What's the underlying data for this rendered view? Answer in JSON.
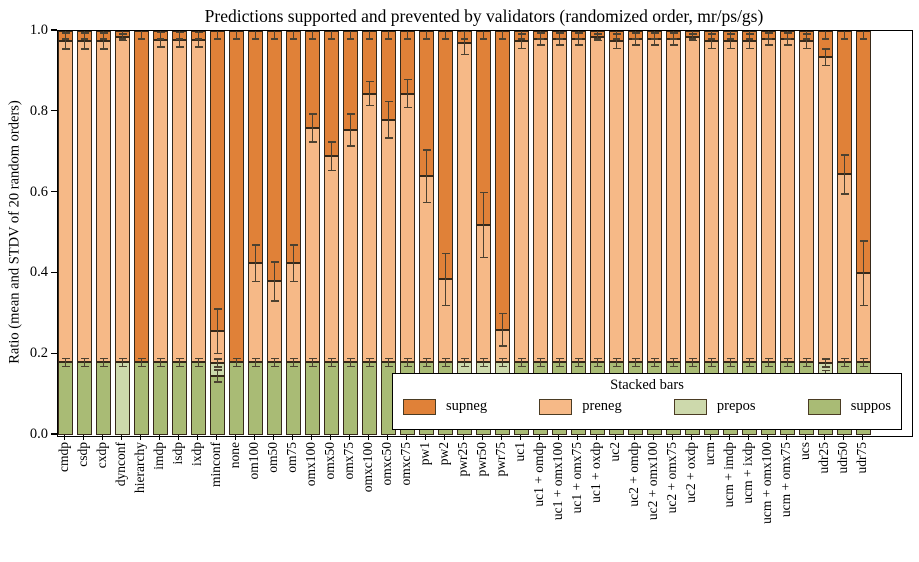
{
  "title": "Predictions supported and prevented by validators (randomized order, mr/ps/gs)",
  "ylabel": "Ratio (mean and STDV of 20 random orders)",
  "legend": {
    "title": "Stacked bars",
    "entries": [
      {
        "name": "supneg",
        "label": "supneg",
        "color": "#e08138"
      },
      {
        "name": "preneg",
        "label": "preneg",
        "color": "#f6b987"
      },
      {
        "name": "prepos",
        "label": "prepos",
        "color": "#cdd9ac"
      },
      {
        "name": "suppos",
        "label": "suppos",
        "color": "#a9bb75"
      }
    ]
  },
  "chart_data": {
    "type": "bar",
    "stacked": true,
    "title": "Predictions supported and prevented by validators (randomized order, mr/ps/gs)",
    "xlabel": "",
    "ylabel": "Ratio (mean and STDV of 20 random orders)",
    "ylim": [
      0.0,
      1.0
    ],
    "yticks": [
      "0.0",
      "0.2",
      "0.4",
      "0.6",
      "0.8",
      "1.0"
    ],
    "grid": false,
    "legend_position": "lower right inside",
    "series_order_bottom_to_top": [
      "suppos",
      "prepos",
      "preneg",
      "supneg"
    ],
    "colors": {
      "supneg": "#e08138",
      "preneg": "#f6b987",
      "prepos": "#cdd9ac",
      "suppos": "#a9bb75",
      "edge": "#36291a",
      "errorbar": "#4c4130"
    },
    "note": "Each bar stacks to 1.0; 'boundary' = top of preneg / bottom of supneg; 'err' = STDV of that boundary; green_top_err applies at suppos+prepos boundary; top_err is the small tick at 1.0.",
    "green_top_err": 0.01,
    "top_err": 0.02,
    "bars": [
      {
        "label": "cmdp",
        "suppos": 0.18,
        "prepos": 0,
        "boundary": 0.975,
        "err": 0.02
      },
      {
        "label": "csdp",
        "suppos": 0.18,
        "prepos": 0,
        "boundary": 0.975,
        "err": 0.02
      },
      {
        "label": "cxdp",
        "suppos": 0.18,
        "prepos": 0,
        "boundary": 0.975,
        "err": 0.02
      },
      {
        "label": "dynconf",
        "suppos": 0,
        "prepos": 0.18,
        "boundary": 0.985,
        "err": 0.008
      },
      {
        "label": "hierarchy",
        "suppos": 0.18,
        "prepos": 0,
        "boundary": 0.18,
        "err": null
      },
      {
        "label": "imdp",
        "suppos": 0.18,
        "prepos": 0,
        "boundary": 0.978,
        "err": 0.018
      },
      {
        "label": "isdp",
        "suppos": 0.18,
        "prepos": 0,
        "boundary": 0.978,
        "err": 0.018
      },
      {
        "label": "ixdp",
        "suppos": 0.18,
        "prepos": 0,
        "boundary": 0.978,
        "err": 0.018
      },
      {
        "label": "minconf",
        "suppos": 0.146,
        "prepos": 0.032,
        "boundary": 0.257,
        "err": 0.055,
        "extra_errs": [
          {
            "v": 0.146,
            "e": 0.015
          }
        ]
      },
      {
        "label": "none",
        "suppos": 0.18,
        "prepos": 0,
        "boundary": 0.18,
        "err": null
      },
      {
        "label": "om100",
        "suppos": 0.18,
        "prepos": 0,
        "boundary": 0.425,
        "err": 0.045
      },
      {
        "label": "om50",
        "suppos": 0.18,
        "prepos": 0,
        "boundary": 0.38,
        "err": 0.048
      },
      {
        "label": "om75",
        "suppos": 0.18,
        "prepos": 0,
        "boundary": 0.425,
        "err": 0.045
      },
      {
        "label": "omx100",
        "suppos": 0.18,
        "prepos": 0,
        "boundary": 0.76,
        "err": 0.035
      },
      {
        "label": "omx50",
        "suppos": 0.18,
        "prepos": 0,
        "boundary": 0.69,
        "err": 0.035
      },
      {
        "label": "omx75",
        "suppos": 0.18,
        "prepos": 0,
        "boundary": 0.755,
        "err": 0.04
      },
      {
        "label": "omxc100",
        "suppos": 0.18,
        "prepos": 0,
        "boundary": 0.845,
        "err": 0.03
      },
      {
        "label": "omxc50",
        "suppos": 0.18,
        "prepos": 0,
        "boundary": 0.78,
        "err": 0.045
      },
      {
        "label": "omxc75",
        "suppos": 0.18,
        "prepos": 0,
        "boundary": 0.845,
        "err": 0.035
      },
      {
        "label": "pw1",
        "suppos": 0.18,
        "prepos": 0,
        "boundary": 0.64,
        "err": 0.065
      },
      {
        "label": "pw2",
        "suppos": 0.18,
        "prepos": 0,
        "boundary": 0.385,
        "err": 0.065
      },
      {
        "label": "pwr25",
        "suppos": 0.15,
        "prepos": 0.03,
        "boundary": 0.97,
        "err": 0.028
      },
      {
        "label": "pwr50",
        "suppos": 0.15,
        "prepos": 0.03,
        "boundary": 0.52,
        "err": 0.08
      },
      {
        "label": "pwr75",
        "suppos": 0.15,
        "prepos": 0.03,
        "boundary": 0.26,
        "err": 0.04
      },
      {
        "label": "uc1",
        "suppos": 0.18,
        "prepos": 0,
        "boundary": 0.975,
        "err": 0.018
      },
      {
        "label": "uc1 + omdp",
        "suppos": 0.18,
        "prepos": 0,
        "boundary": 0.98,
        "err": 0.015
      },
      {
        "label": "uc1 + omx100",
        "suppos": 0.18,
        "prepos": 0,
        "boundary": 0.98,
        "err": 0.015
      },
      {
        "label": "uc1 + omx75",
        "suppos": 0.18,
        "prepos": 0,
        "boundary": 0.98,
        "err": 0.015
      },
      {
        "label": "uc1 + oxdp",
        "suppos": 0.18,
        "prepos": 0,
        "boundary": 0.985,
        "err": 0.008
      },
      {
        "label": "uc2",
        "suppos": 0.18,
        "prepos": 0,
        "boundary": 0.975,
        "err": 0.018
      },
      {
        "label": "uc2 + omdp",
        "suppos": 0.18,
        "prepos": 0,
        "boundary": 0.98,
        "err": 0.015
      },
      {
        "label": "uc2 + omx100",
        "suppos": 0.18,
        "prepos": 0,
        "boundary": 0.98,
        "err": 0.015
      },
      {
        "label": "uc2 + omx75",
        "suppos": 0.18,
        "prepos": 0,
        "boundary": 0.98,
        "err": 0.015
      },
      {
        "label": "uc2 + oxdp",
        "suppos": 0.18,
        "prepos": 0,
        "boundary": 0.985,
        "err": 0.008
      },
      {
        "label": "ucm",
        "suppos": 0.18,
        "prepos": 0,
        "boundary": 0.975,
        "err": 0.018
      },
      {
        "label": "ucm + imdp",
        "suppos": 0.18,
        "prepos": 0,
        "boundary": 0.975,
        "err": 0.018
      },
      {
        "label": "ucm + ixdp",
        "suppos": 0.18,
        "prepos": 0,
        "boundary": 0.975,
        "err": 0.018
      },
      {
        "label": "ucm + omx100",
        "suppos": 0.18,
        "prepos": 0,
        "boundary": 0.98,
        "err": 0.015
      },
      {
        "label": "ucm + omx75",
        "suppos": 0.18,
        "prepos": 0,
        "boundary": 0.98,
        "err": 0.015
      },
      {
        "label": "ucs",
        "suppos": 0.18,
        "prepos": 0,
        "boundary": 0.975,
        "err": 0.018
      },
      {
        "label": "udr25",
        "suppos": 0.148,
        "prepos": 0.03,
        "boundary": 0.935,
        "err": 0.02,
        "extra_errs": [
          {
            "v": 0.148,
            "e": 0.012
          }
        ]
      },
      {
        "label": "udr50",
        "suppos": 0.18,
        "prepos": 0,
        "boundary": 0.645,
        "err": 0.048
      },
      {
        "label": "udr75",
        "suppos": 0.18,
        "prepos": 0,
        "boundary": 0.4,
        "err": 0.08
      }
    ]
  }
}
